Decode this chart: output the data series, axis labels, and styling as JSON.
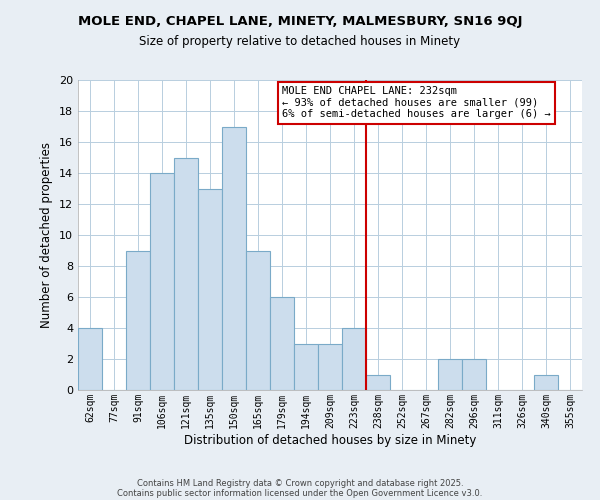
{
  "title": "MOLE END, CHAPEL LANE, MINETY, MALMESBURY, SN16 9QJ",
  "subtitle": "Size of property relative to detached houses in Minety",
  "xlabel": "Distribution of detached houses by size in Minety",
  "ylabel": "Number of detached properties",
  "bin_labels": [
    "62sqm",
    "77sqm",
    "91sqm",
    "106sqm",
    "121sqm",
    "135sqm",
    "150sqm",
    "165sqm",
    "179sqm",
    "194sqm",
    "209sqm",
    "223sqm",
    "238sqm",
    "252sqm",
    "267sqm",
    "282sqm",
    "296sqm",
    "311sqm",
    "326sqm",
    "340sqm",
    "355sqm"
  ],
  "bar_heights": [
    4,
    0,
    9,
    14,
    15,
    13,
    17,
    9,
    6,
    3,
    3,
    4,
    1,
    0,
    0,
    2,
    2,
    0,
    0,
    1,
    0
  ],
  "bar_color": "#ccdded",
  "bar_edge_color": "#7aaac8",
  "vline_x_index": 12,
  "vline_color": "#cc0000",
  "annotation_title": "MOLE END CHAPEL LANE: 232sqm",
  "annotation_line1": "← 93% of detached houses are smaller (99)",
  "annotation_line2": "6% of semi-detached houses are larger (6) →",
  "annotation_box_color": "#cc0000",
  "ylim": [
    0,
    20
  ],
  "yticks": [
    0,
    2,
    4,
    6,
    8,
    10,
    12,
    14,
    16,
    18,
    20
  ],
  "footer1": "Contains HM Land Registry data © Crown copyright and database right 2025.",
  "footer2": "Contains public sector information licensed under the Open Government Licence v3.0.",
  "background_color": "#e8eef4",
  "plot_background": "#ffffff",
  "grid_color": "#b8cede"
}
